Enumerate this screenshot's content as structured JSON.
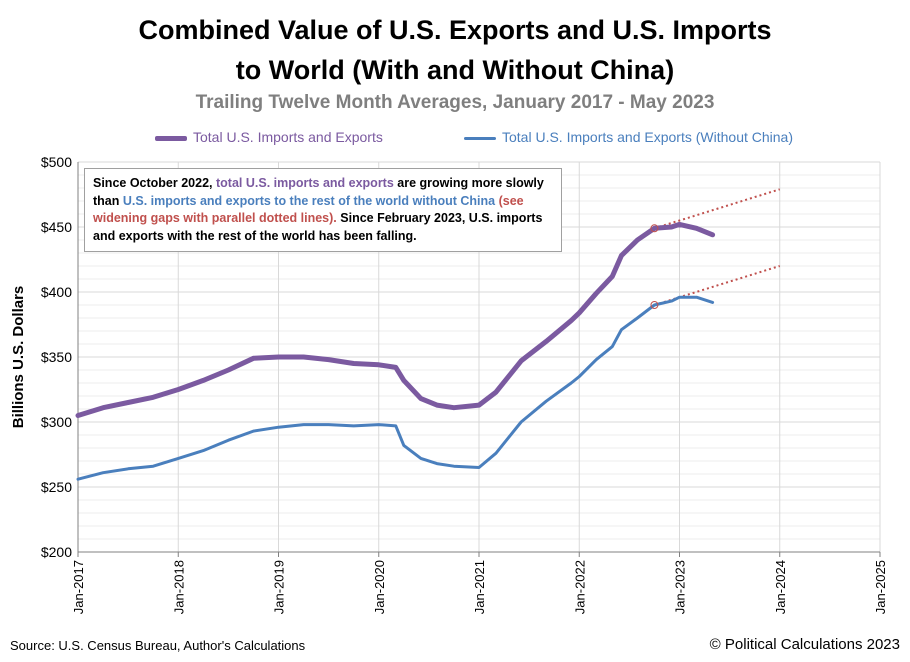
{
  "title_line1": "Combined Value of U.S. Exports and U.S. Imports",
  "title_line2": "to World (With and Without China)",
  "subtitle": "Trailing Twelve Month Averages, January 2017 - May 2023",
  "colors": {
    "total": "#7b5aa0",
    "without_china": "#4a7fbd",
    "trend": "#c0504d",
    "grid": "#d9d9d9"
  },
  "annotation": {
    "p1": "Since October 2022,",
    "p2": "total U.S. imports and exports",
    "p3": "are growing more slowly than",
    "p4": "U.S. imports and exports to the rest of the world without China",
    "p5": "(see widening gaps with parallel dotted lines).",
    "p6": "Since February 2023,  U.S. imports and exports with the rest of the world has been falling."
  },
  "source": "Source: U.S. Census Bureau, Author's Calculations",
  "copyright": "© Political Calculations 2023",
  "chart_data": {
    "type": "line",
    "title": "Combined Value of U.S. Exports and U.S. Imports to World (With and Without China)",
    "subtitle": "Trailing Twelve Month Averages, January 2017 - May 2023",
    "ylabel": "Billions U.S. Dollars",
    "xlabel": "",
    "ylim": [
      200,
      500
    ],
    "yticks": [
      200,
      250,
      300,
      350,
      400,
      450,
      500
    ],
    "ytick_labels": [
      "$200",
      "$250",
      "$300",
      "$350",
      "$400",
      "$450",
      "$500"
    ],
    "xlim": [
      2017,
      2025
    ],
    "xticks": [
      2017,
      2018,
      2019,
      2020,
      2021,
      2022,
      2023,
      2024,
      2025
    ],
    "xtick_labels": [
      "Jan-2017",
      "Jan-2018",
      "Jan-2019",
      "Jan-2020",
      "Jan-2021",
      "Jan-2022",
      "Jan-2023",
      "Jan-2024",
      "Jan-2025"
    ],
    "grid": true,
    "legend": "top",
    "series": [
      {
        "name": "Total U.S. Imports and Exports",
        "x": [
          2017.0,
          2017.25,
          2017.5,
          2017.75,
          2018.0,
          2018.25,
          2018.5,
          2018.75,
          2019.0,
          2019.25,
          2019.5,
          2019.75,
          2020.0,
          2020.17,
          2020.25,
          2020.42,
          2020.58,
          2020.75,
          2021.0,
          2021.17,
          2021.42,
          2021.67,
          2021.92,
          2022.0,
          2022.17,
          2022.33,
          2022.42,
          2022.58,
          2022.75,
          2022.92,
          2023.0,
          2023.17,
          2023.33
        ],
        "y": [
          305,
          311,
          315,
          319,
          325,
          332,
          340,
          349,
          350,
          350,
          348,
          345,
          344,
          342,
          332,
          318,
          313,
          311,
          313,
          323,
          347,
          362,
          378,
          384,
          399,
          412,
          428,
          440,
          449,
          450,
          452,
          449,
          444
        ]
      },
      {
        "name": "Total U.S. Imports and Exports (Without China)",
        "x": [
          2017.0,
          2017.25,
          2017.5,
          2017.75,
          2018.0,
          2018.25,
          2018.5,
          2018.75,
          2019.0,
          2019.25,
          2019.5,
          2019.75,
          2020.0,
          2020.17,
          2020.25,
          2020.42,
          2020.58,
          2020.75,
          2021.0,
          2021.17,
          2021.42,
          2021.67,
          2021.92,
          2022.0,
          2022.17,
          2022.33,
          2022.42,
          2022.58,
          2022.75,
          2022.92,
          2023.0,
          2023.17,
          2023.33
        ],
        "y": [
          256,
          261,
          264,
          266,
          272,
          278,
          286,
          293,
          296,
          298,
          298,
          297,
          298,
          297,
          282,
          272,
          268,
          266,
          265,
          276,
          300,
          316,
          330,
          335,
          348,
          358,
          371,
          380,
          390,
          393,
          396,
          396,
          392
        ]
      }
    ],
    "trend_lines": [
      {
        "x": [
          2022.75,
          2024.0
        ],
        "y": [
          449,
          479
        ]
      },
      {
        "x": [
          2022.75,
          2024.0
        ],
        "y": [
          390,
          420
        ]
      }
    ]
  }
}
